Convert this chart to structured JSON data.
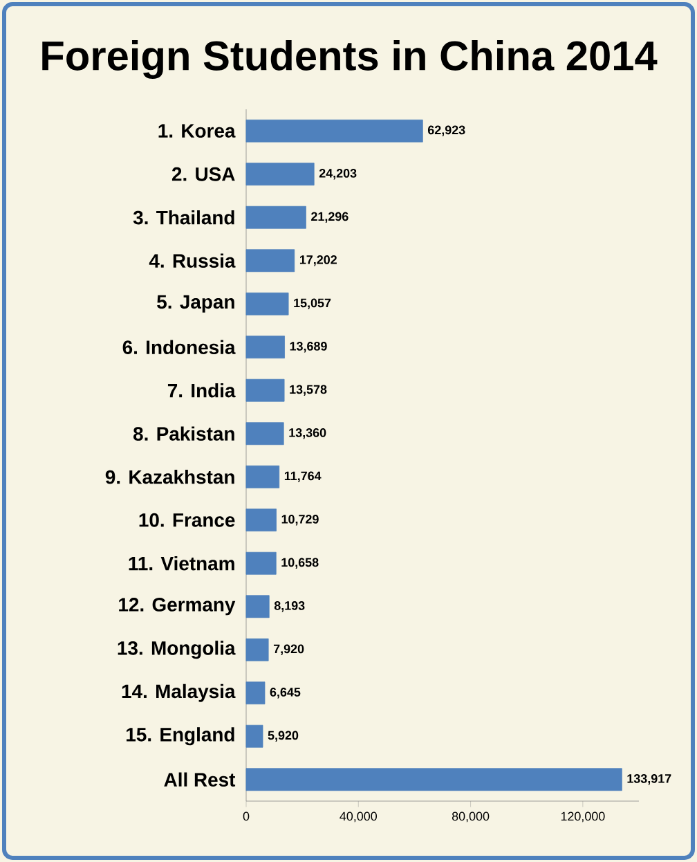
{
  "chart_data": {
    "type": "bar",
    "title": "Foreign Students in China 2014",
    "orientation": "horizontal",
    "categories": [
      "1. Korea",
      "2. USA",
      "3. Thailand",
      "4. Russia",
      "5. Japan",
      "6. Indonesia",
      "7. India",
      "8. Pakistan",
      "9. Kazakhstan",
      "10. France",
      "11. Vietnam",
      "12. Germany",
      "13. Mongolia",
      "14. Malaysia",
      "15. England",
      "All Rest"
    ],
    "values": [
      62923,
      24203,
      21296,
      17202,
      15057,
      13689,
      13578,
      13360,
      11764,
      10729,
      10658,
      8193,
      7920,
      6645,
      5920,
      133917
    ],
    "value_labels": [
      "62,923",
      "24,203",
      "21,296",
      "17,202",
      "15,057",
      "13,689",
      "13,578",
      "13,360",
      "11,764",
      "10,729",
      "10,658",
      "8,193",
      "7,920",
      "6,645",
      "5,920",
      "133,917"
    ],
    "color": "#4f81bd",
    "xlim": [
      0,
      140000
    ],
    "xticks": [
      0,
      {
        "value": 40000,
        "label": "40,000"
      },
      {
        "value": 80000,
        "label": "80,000"
      },
      {
        "value": 120000,
        "label": "120,000"
      }
    ]
  }
}
